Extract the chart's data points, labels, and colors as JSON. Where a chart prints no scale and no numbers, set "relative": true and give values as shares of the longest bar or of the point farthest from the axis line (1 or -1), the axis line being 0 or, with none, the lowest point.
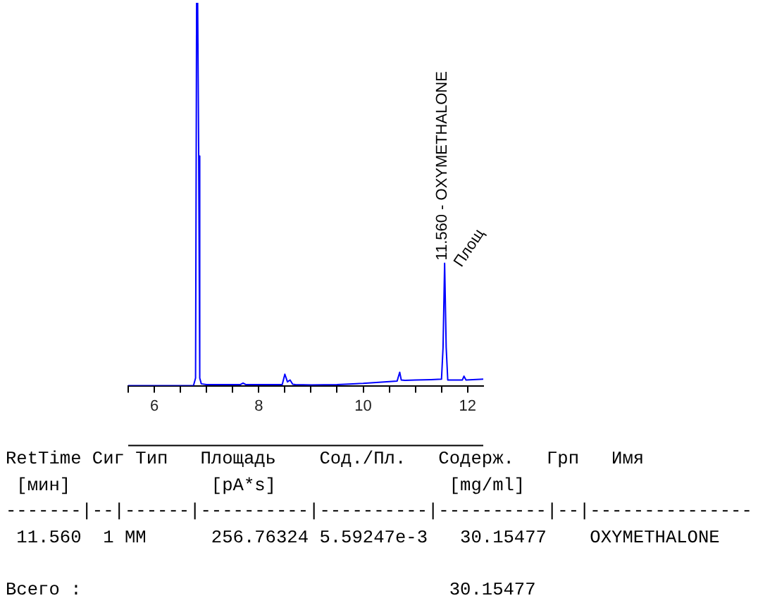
{
  "chart_data": {
    "type": "line",
    "relative": true,
    "x": [
      5.5,
      6.0,
      6.5,
      6.75,
      6.79,
      6.81,
      6.83,
      6.85,
      6.87,
      6.9,
      7.0,
      7.5,
      7.65,
      7.7,
      7.75,
      8.0,
      8.45,
      8.5,
      8.55,
      8.6,
      8.65,
      8.7,
      9.0,
      9.5,
      9.8,
      10.0,
      10.4,
      10.65,
      10.7,
      10.73,
      10.8,
      11.0,
      11.3,
      11.5,
      11.53,
      11.56,
      11.59,
      11.62,
      11.7,
      11.9,
      11.93,
      11.97,
      12.1,
      12.3
    ],
    "series": [
      {
        "color": "#0000ff",
        "values": [
          0,
          0,
          0,
          0,
          0.02,
          1.0,
          1.0,
          0.6,
          0.02,
          0.005,
          0.003,
          0.003,
          0.003,
          0.007,
          0.003,
          0.003,
          0.003,
          0.03,
          0.01,
          0.015,
          0.004,
          0.003,
          0.002,
          0.003,
          0.005,
          0.006,
          0.01,
          0.012,
          0.035,
          0.015,
          0.014,
          0.015,
          0.016,
          0.017,
          0.1,
          0.32,
          0.1,
          0.015,
          0.015,
          0.015,
          0.025,
          0.015,
          0.016,
          0.017
        ]
      }
    ],
    "xlim": [
      5.5,
      12.3
    ],
    "xticks": [
      {
        "value": 5.5,
        "label": null
      },
      6,
      {
        "value": 6.5,
        "label": null
      },
      {
        "value": 7,
        "label": null
      },
      {
        "value": 7.5,
        "label": null
      },
      8,
      {
        "value": 8.5,
        "label": null
      },
      {
        "value": 9,
        "label": null
      },
      {
        "value": 9.5,
        "label": null
      },
      10,
      {
        "value": 10.5,
        "label": null
      },
      {
        "value": 11,
        "label": null
      },
      {
        "value": 11.5,
        "label": null
      },
      12
    ],
    "tick_labels": "x",
    "grid": false,
    "legend": false,
    "marker": "none",
    "line_style": "solid",
    "annotations": [
      {
        "text": "11.560 - OXYMETHALONE",
        "x": 11.56,
        "y": 0.32
      },
      {
        "text": "Площ",
        "x": 11.56,
        "y": 0.32
      },
      "RetTime Сиг Тип   Площадь    Сод./Пл.   Содерж.   Грп   Имя",
      " [мин]             [pA*s]                [mg/ml]",
      "-------|--|------|----------|----------|----------|--|---------------",
      " 11.560  1 MM      256.76324 5.59247e-3   30.15477    OXYMETHALONE",
      "Всего :                                  30.15477"
    ]
  }
}
